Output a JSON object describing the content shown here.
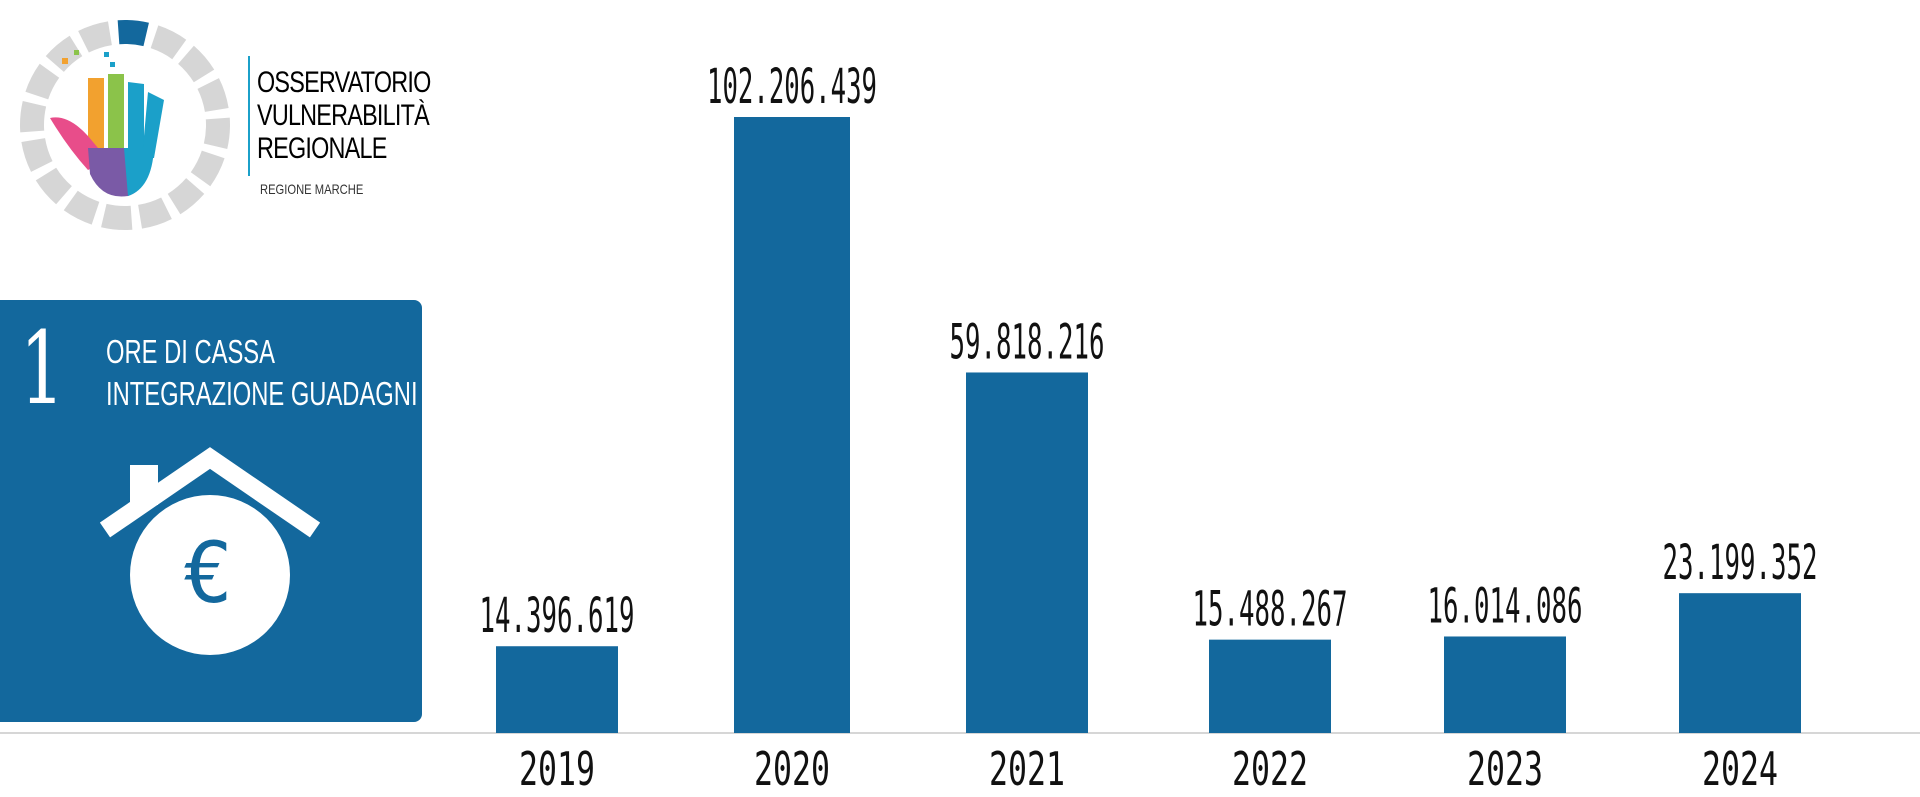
{
  "logo": {
    "line1": "OSSERVATORIO",
    "line2": "VULNERABILITÀ",
    "line3": "REGIONALE",
    "sub": "REGIONE MARCHE",
    "accent": "#1ba0c9"
  },
  "card": {
    "number": "1",
    "title_line1": "ORE DI CASSA",
    "title_line2": "INTEGRAZIONE GUADAGNI",
    "icon_symbol": "€",
    "icon": "house-coin-icon",
    "color": "#13689d"
  },
  "chart_data": {
    "type": "bar",
    "categories": [
      "2019",
      "2020",
      "2021",
      "2022",
      "2023",
      "2024"
    ],
    "values": [
      14396619,
      102206439,
      59818216,
      15488267,
      16014086,
      23199352
    ],
    "value_labels": [
      "14.396.619",
      "102.206.439",
      "59.818.216",
      "15.488.267",
      "16.014.086",
      "23.199.352"
    ],
    "bar_color": "#13689d",
    "title": "",
    "xlabel": "",
    "ylabel": "",
    "ylim": [
      0,
      102206439
    ],
    "grid": false,
    "legend": "none"
  }
}
